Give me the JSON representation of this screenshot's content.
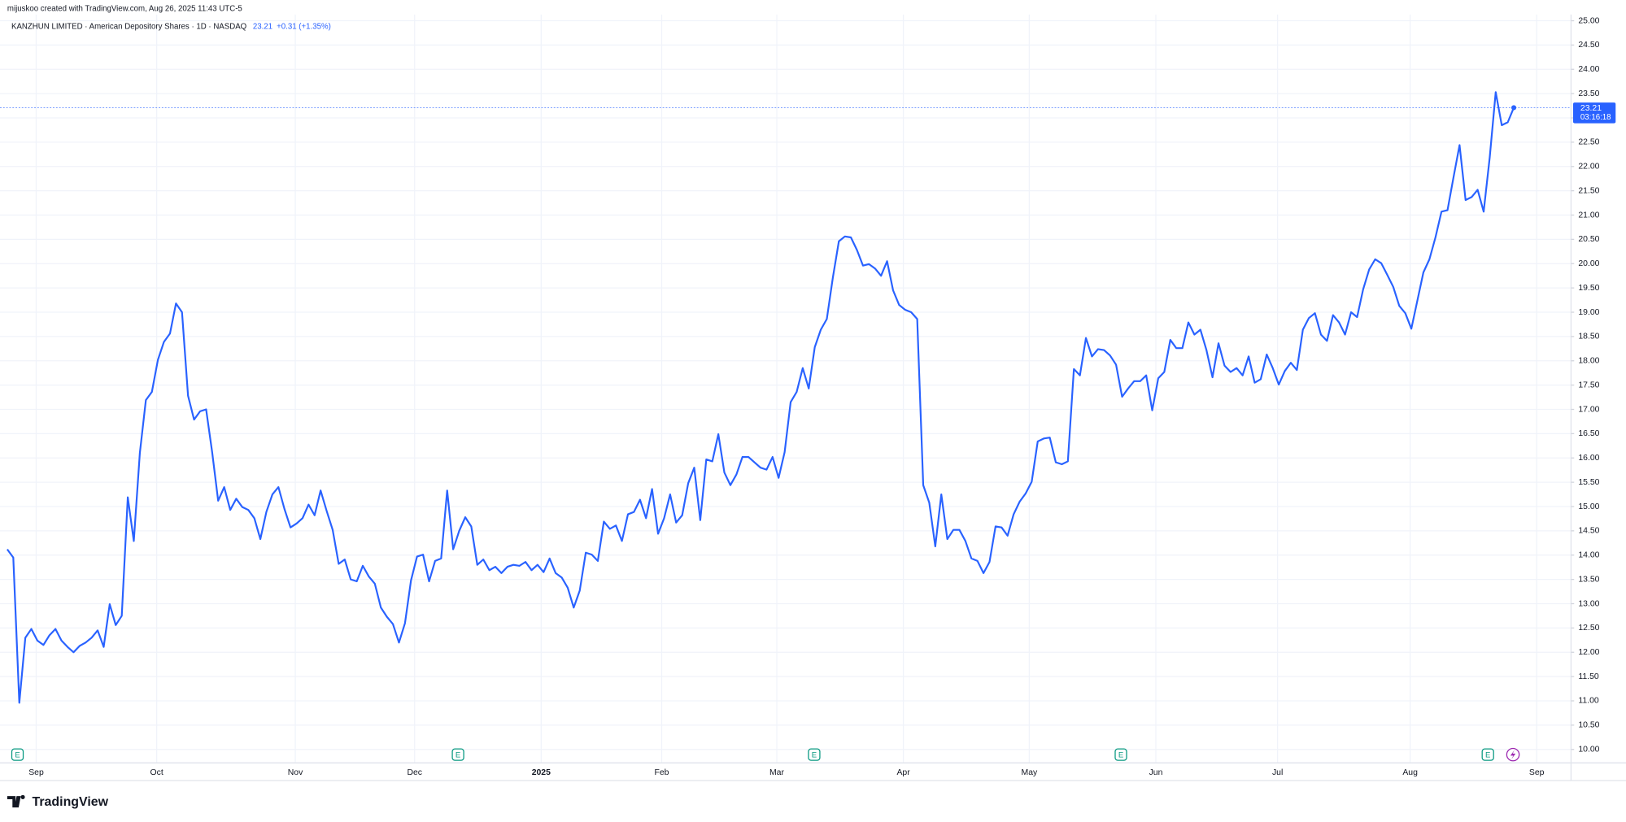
{
  "header": "mijuskoo created with TradingView.com, Aug 26, 2025 11:43 UTC-5",
  "brand": "TradingView",
  "chart_data": {
    "type": "line",
    "title": "KANZHUN LIMITED · American Depository Shares · 1D · NASDAQ",
    "change": "+0.31 (+1.35%)",
    "countdown": "03:16:18",
    "grid": true,
    "last_price_line": true,
    "series": [
      {
        "color": "#2962ff",
        "values": [
          14.12,
          13.95,
          10.96,
          12.3,
          12.48,
          12.24,
          12.15,
          12.35,
          12.48,
          12.24,
          12.11,
          12.0,
          12.13,
          12.2,
          12.3,
          12.45,
          12.11,
          12.99,
          12.56,
          12.75,
          15.19,
          14.29,
          16.1,
          17.19,
          17.36,
          18.02,
          18.39,
          18.56,
          19.18,
          19.0,
          17.28,
          16.79,
          16.96,
          17.0,
          16.12,
          15.12,
          15.4,
          14.93,
          15.16,
          14.99,
          14.93,
          14.76,
          14.33,
          14.89,
          15.25,
          15.4,
          14.95,
          14.57,
          14.65,
          14.76,
          15.04,
          14.82,
          15.33,
          14.91,
          14.52,
          13.82,
          13.91,
          13.5,
          13.46,
          13.78,
          13.56,
          13.41,
          12.92,
          12.73,
          12.58,
          12.2,
          12.6,
          13.48,
          13.97,
          14.01,
          13.46,
          13.88,
          13.93,
          15.33,
          14.12,
          14.5,
          14.78,
          14.59,
          13.8,
          13.91,
          13.69,
          13.76,
          13.63,
          13.76,
          13.8,
          13.78,
          13.86,
          13.69,
          13.8,
          13.65,
          13.93,
          13.63,
          13.54,
          13.33,
          12.92,
          13.27,
          14.05,
          14.01,
          13.88,
          14.69,
          14.54,
          14.61,
          14.29,
          14.84,
          14.89,
          15.14,
          14.76,
          15.36,
          14.44,
          14.76,
          15.25,
          14.67,
          14.82,
          15.48,
          15.8,
          14.72,
          15.97,
          15.93,
          16.49,
          15.7,
          15.44,
          15.66,
          16.02,
          16.02,
          15.91,
          15.8,
          15.76,
          16.02,
          15.59,
          16.12,
          17.15,
          17.36,
          17.85,
          17.43,
          18.28,
          18.64,
          18.86,
          19.71,
          20.46,
          20.56,
          20.54,
          20.28,
          19.96,
          19.99,
          19.9,
          19.75,
          20.05,
          19.45,
          19.15,
          19.05,
          19.0,
          18.86,
          15.44,
          15.08,
          14.18,
          15.25,
          14.33,
          14.52,
          14.52,
          14.29,
          13.93,
          13.88,
          13.63,
          13.86,
          14.59,
          14.57,
          14.4,
          14.84,
          15.1,
          15.27,
          15.51,
          16.34,
          16.4,
          16.42,
          15.91,
          15.87,
          15.93,
          17.83,
          17.7,
          18.47,
          18.09,
          18.24,
          18.22,
          18.11,
          17.92,
          17.26,
          17.43,
          17.58,
          17.58,
          17.7,
          16.98,
          17.64,
          17.77,
          18.43,
          18.26,
          18.26,
          18.79,
          18.54,
          18.64,
          18.22,
          17.66,
          18.36,
          17.9,
          17.77,
          17.85,
          17.7,
          18.09,
          17.55,
          17.62,
          18.13,
          17.85,
          17.51,
          17.79,
          17.96,
          17.81,
          18.64,
          18.88,
          18.98,
          18.54,
          18.41,
          18.94,
          18.79,
          18.54,
          19.0,
          18.9,
          19.47,
          19.88,
          20.09,
          20.01,
          19.77,
          19.52,
          19.13,
          18.98,
          18.66,
          19.24,
          19.82,
          20.09,
          20.54,
          21.07,
          21.1,
          21.78,
          22.44,
          21.31,
          21.37,
          21.52,
          21.07,
          22.18,
          23.53,
          22.85,
          22.91,
          23.21
        ]
      }
    ],
    "xlim": [
      0,
      259.5
    ],
    "xticks": [
      {
        "value": 4.8,
        "label": "Sep"
      },
      {
        "value": 24.8,
        "label": "Oct"
      },
      {
        "value": 47.8,
        "label": "Nov"
      },
      {
        "value": 67.6,
        "label": "Dec"
      },
      {
        "value": 88.6,
        "label": "2025"
      },
      {
        "value": 108.6,
        "label": "Feb"
      },
      {
        "value": 127.7,
        "label": "Mar"
      },
      {
        "value": 148.7,
        "label": "Apr"
      },
      {
        "value": 169.6,
        "label": "May"
      },
      {
        "value": 190.6,
        "label": "Jun"
      },
      {
        "value": 210.8,
        "label": "Jul"
      },
      {
        "value": 232.8,
        "label": "Aug"
      },
      {
        "value": 253.8,
        "label": "Sep"
      }
    ],
    "ylim": [
      10,
      25
    ],
    "yticks": [
      {
        "value": 10,
        "label": "10.00"
      },
      {
        "value": 10.5,
        "label": "10.50"
      },
      {
        "value": 11,
        "label": "11.00"
      },
      {
        "value": 11.5,
        "label": "11.50"
      },
      {
        "value": 12,
        "label": "12.00"
      },
      {
        "value": 12.5,
        "label": "12.50"
      },
      {
        "value": 13,
        "label": "13.00"
      },
      {
        "value": 13.5,
        "label": "13.50"
      },
      {
        "value": 14,
        "label": "14.00"
      },
      {
        "value": 14.5,
        "label": "14.50"
      },
      {
        "value": 15,
        "label": "15.00"
      },
      {
        "value": 15.5,
        "label": "15.50"
      },
      {
        "value": 16,
        "label": "16.00"
      },
      {
        "value": 16.5,
        "label": "16.50"
      },
      {
        "value": 17,
        "label": "17.00"
      },
      {
        "value": 17.5,
        "label": "17.50"
      },
      {
        "value": 18,
        "label": "18.00"
      },
      {
        "value": 18.5,
        "label": "18.50"
      },
      {
        "value": 19,
        "label": "19.00"
      },
      {
        "value": 19.5,
        "label": "19.50"
      },
      {
        "value": 20,
        "label": "20.00"
      },
      {
        "value": 20.5,
        "label": "20.50"
      },
      {
        "value": 21,
        "label": "21.00"
      },
      {
        "value": 21.5,
        "label": "21.50"
      },
      {
        "value": 22,
        "label": "22.00"
      },
      {
        "value": 22.5,
        "label": "22.50"
      },
      {
        "value": 23,
        "label": "23.00"
      },
      {
        "value": 23.5,
        "label": "23.50"
      },
      {
        "value": 24,
        "label": "24.00"
      },
      {
        "value": 24.5,
        "label": "24.50"
      },
      {
        "value": 25,
        "label": "25.00"
      }
    ],
    "earnings_markers": {
      "label": "E",
      "x": [
        1.7,
        74.8,
        133.9,
        184.8,
        245.7
      ]
    }
  }
}
